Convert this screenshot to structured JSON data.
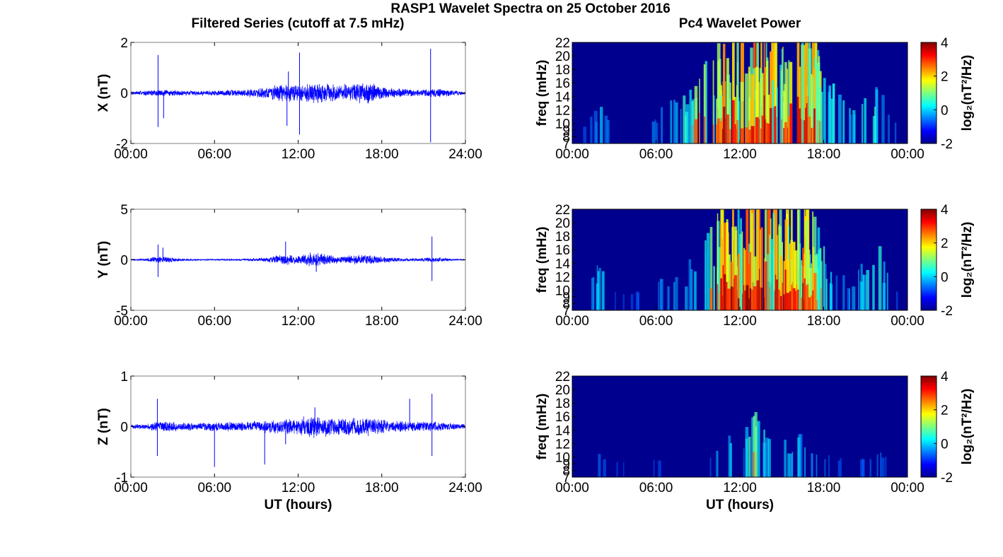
{
  "figure": {
    "title": "RASP1 Wavelet Spectra on 25 October 2016",
    "left_title": "Filtered Series (cutoff at 7.5 mHz)",
    "right_title": "Pc4 Wavelet Power",
    "x_label": "UT (hours)"
  },
  "colors": {
    "trace": "#0000ff",
    "spectrum_background": "#00008f"
  },
  "chart_data": [
    {
      "id": "x-series",
      "type": "line",
      "title": "",
      "ylabel": "X (nT)",
      "xlabel": "",
      "xlim": [
        0,
        24
      ],
      "ylim": [
        -2,
        2
      ],
      "xticks": [
        "00:00",
        "06:00",
        "12:00",
        "18:00",
        "24:00"
      ],
      "yticks": [
        "-2",
        "0",
        "2"
      ],
      "envelope": {
        "hours": [
          0,
          1,
          2,
          3,
          4,
          5,
          6,
          7,
          8,
          9,
          10,
          11,
          12,
          13,
          14,
          15,
          16,
          17,
          18,
          19,
          20,
          21,
          22,
          23,
          24
        ],
        "amplitude_nT": [
          0.08,
          0.1,
          0.15,
          0.12,
          0.1,
          0.1,
          0.12,
          0.13,
          0.15,
          0.2,
          0.3,
          0.4,
          0.35,
          0.45,
          0.4,
          0.35,
          0.4,
          0.45,
          0.3,
          0.2,
          0.15,
          0.15,
          0.2,
          0.12,
          0.08
        ]
      },
      "spikes": [
        {
          "t": 1.95,
          "y": 1.5
        },
        {
          "t": 1.95,
          "y": -1.35
        },
        {
          "t": 2.35,
          "y": -1.0
        },
        {
          "t": 11.2,
          "y": -1.3
        },
        {
          "t": 11.3,
          "y": 0.85
        },
        {
          "t": 12.1,
          "y": 1.6
        },
        {
          "t": 12.1,
          "y": -1.65
        },
        {
          "t": 21.5,
          "y": 1.75
        },
        {
          "t": 21.5,
          "y": -1.95
        }
      ]
    },
    {
      "id": "y-series",
      "type": "line",
      "title": "",
      "ylabel": "Y (nT)",
      "xlabel": "",
      "xlim": [
        0,
        24
      ],
      "ylim": [
        -5,
        5
      ],
      "xticks": [
        "00:00",
        "06:00",
        "12:00",
        "18:00",
        "24:00"
      ],
      "yticks": [
        "-5",
        "0",
        "5"
      ],
      "envelope": {
        "hours": [
          0,
          1,
          2,
          3,
          4,
          5,
          6,
          7,
          8,
          9,
          10,
          11,
          12,
          13,
          14,
          15,
          16,
          17,
          18,
          19,
          20,
          21,
          22,
          23,
          24
        ],
        "amplitude_nT": [
          0.08,
          0.1,
          0.4,
          0.25,
          0.1,
          0.08,
          0.08,
          0.08,
          0.1,
          0.15,
          0.3,
          0.6,
          0.4,
          0.9,
          0.6,
          0.4,
          0.5,
          0.6,
          0.35,
          0.2,
          0.15,
          0.2,
          0.3,
          0.1,
          0.06
        ]
      },
      "spikes": [
        {
          "t": 1.95,
          "y": 1.5
        },
        {
          "t": 1.95,
          "y": -1.7
        },
        {
          "t": 2.3,
          "y": 1.2
        },
        {
          "t": 11.1,
          "y": 1.8
        },
        {
          "t": 13.3,
          "y": -1.2
        },
        {
          "t": 21.6,
          "y": 2.3
        },
        {
          "t": 21.6,
          "y": -2.1
        }
      ]
    },
    {
      "id": "z-series",
      "type": "line",
      "title": "",
      "ylabel": "Z (nT)",
      "xlabel": "UT (hours)",
      "xlim": [
        0,
        24
      ],
      "ylim": [
        -1,
        1
      ],
      "xticks": [
        "00:00",
        "06:00",
        "12:00",
        "18:00",
        "24:00"
      ],
      "yticks": [
        "-1",
        "0",
        "1"
      ],
      "envelope": {
        "hours": [
          0,
          1,
          2,
          3,
          4,
          5,
          6,
          7,
          8,
          9,
          10,
          11,
          12,
          13,
          14,
          15,
          16,
          17,
          18,
          19,
          20,
          21,
          22,
          23,
          24
        ],
        "amplitude_nT": [
          0.05,
          0.06,
          0.12,
          0.1,
          0.08,
          0.08,
          0.1,
          0.1,
          0.1,
          0.12,
          0.15,
          0.18,
          0.18,
          0.25,
          0.22,
          0.18,
          0.2,
          0.2,
          0.15,
          0.12,
          0.1,
          0.1,
          0.1,
          0.07,
          0.05
        ]
      },
      "spikes": [
        {
          "t": 1.9,
          "y": 0.55
        },
        {
          "t": 1.9,
          "y": -0.58
        },
        {
          "t": 6.0,
          "y": -0.8
        },
        {
          "t": 9.6,
          "y": -0.75
        },
        {
          "t": 11.1,
          "y": -0.35
        },
        {
          "t": 13.2,
          "y": 0.38
        },
        {
          "t": 20.0,
          "y": 0.55
        },
        {
          "t": 21.6,
          "y": 0.65
        },
        {
          "t": 21.6,
          "y": -0.58
        }
      ]
    },
    {
      "id": "x-power",
      "type": "heatmap",
      "title": "",
      "ylabel": "freq (mHz)",
      "xlabel": "",
      "xlim": [
        0,
        24
      ],
      "ylim": [
        7,
        22
      ],
      "xticks": [
        "00:00",
        "06:00",
        "12:00",
        "18:00",
        "00:00"
      ],
      "yticks": [
        "7",
        "8",
        "9",
        "10",
        "12",
        "14",
        "16",
        "18",
        "20",
        "22"
      ],
      "colorbar": {
        "label": "log₂(nT²/Hz)",
        "min": -2,
        "max": 4,
        "ticks": [
          "4",
          "2",
          "0",
          "-2"
        ]
      },
      "activity": {
        "hours": [
          0,
          1,
          2,
          3,
          4,
          5,
          6,
          7,
          8,
          9,
          10,
          11,
          12,
          13,
          14,
          15,
          16,
          17,
          18,
          19,
          20,
          21,
          22,
          23,
          24
        ],
        "level": [
          0.0,
          0.05,
          0.25,
          0.05,
          0.0,
          0.05,
          0.15,
          0.25,
          0.35,
          0.55,
          0.65,
          0.9,
          0.85,
          1.0,
          0.9,
          0.8,
          0.85,
          0.95,
          0.55,
          0.35,
          0.3,
          0.3,
          0.4,
          0.1,
          0.0
        ]
      }
    },
    {
      "id": "y-power",
      "type": "heatmap",
      "title": "",
      "ylabel": "freq (mHz)",
      "xlabel": "",
      "xlim": [
        0,
        24
      ],
      "ylim": [
        7,
        22
      ],
      "xticks": [
        "00:00",
        "06:00",
        "12:00",
        "18:00",
        "00:00"
      ],
      "yticks": [
        "7",
        "8",
        "9",
        "10",
        "12",
        "14",
        "16",
        "18",
        "20",
        "22"
      ],
      "colorbar": {
        "label": "log₂(nT²/Hz)",
        "min": -2,
        "max": 4,
        "ticks": [
          "4",
          "2",
          "0",
          "-2"
        ]
      },
      "activity": {
        "hours": [
          0,
          1,
          2,
          3,
          4,
          5,
          6,
          7,
          8,
          9,
          10,
          11,
          12,
          13,
          14,
          15,
          16,
          17,
          18,
          19,
          20,
          21,
          22,
          23,
          24
        ],
        "level": [
          0.0,
          0.05,
          0.35,
          0.05,
          0.0,
          0.05,
          0.12,
          0.2,
          0.25,
          0.45,
          0.7,
          0.95,
          0.9,
          1.0,
          0.95,
          0.85,
          0.95,
          0.9,
          0.45,
          0.2,
          0.2,
          0.35,
          0.5,
          0.05,
          0.0
        ]
      }
    },
    {
      "id": "z-power",
      "type": "heatmap",
      "title": "",
      "ylabel": "freq (mHz)",
      "xlabel": "UT (hours)",
      "xlim": [
        0,
        24
      ],
      "ylim": [
        7,
        22
      ],
      "xticks": [
        "00:00",
        "06:00",
        "12:00",
        "18:00",
        "00:00"
      ],
      "yticks": [
        "7",
        "8",
        "9",
        "10",
        "12",
        "14",
        "16",
        "18",
        "20",
        "22"
      ],
      "colorbar": {
        "label": "log₂(nT²/Hz)",
        "min": -2,
        "max": 4,
        "ticks": [
          "4",
          "2",
          "0",
          "-2"
        ]
      },
      "activity": {
        "hours": [
          0,
          1,
          2,
          3,
          4,
          5,
          6,
          7,
          8,
          9,
          10,
          11,
          12,
          13,
          14,
          15,
          16,
          17,
          18,
          19,
          20,
          21,
          22,
          23,
          24
        ],
        "level": [
          0.0,
          0.0,
          0.1,
          0.0,
          0.0,
          0.0,
          0.05,
          0.0,
          0.0,
          0.05,
          0.1,
          0.35,
          0.15,
          0.55,
          0.3,
          0.2,
          0.3,
          0.25,
          0.1,
          0.05,
          0.0,
          0.05,
          0.1,
          0.0,
          0.0
        ]
      }
    }
  ]
}
